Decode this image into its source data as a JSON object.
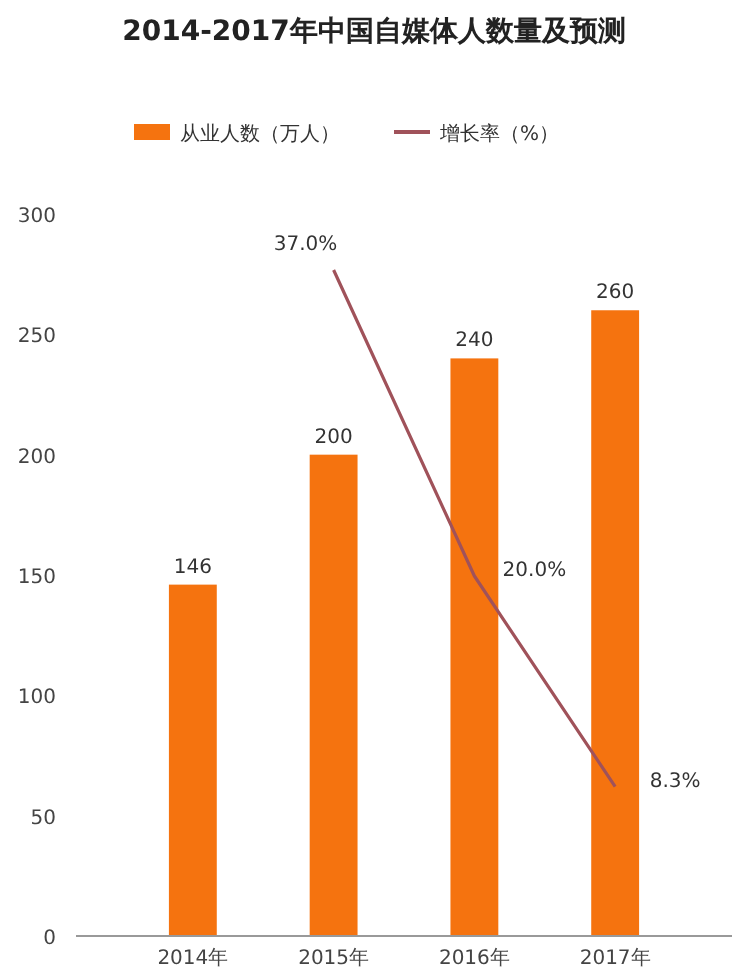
{
  "chart_data": {
    "type": "bar",
    "title": "2014-2017年中国自媒体人数量及预测",
    "categories": [
      "2014年",
      "2015年",
      "2016年",
      "2017年"
    ],
    "series": [
      {
        "name": "从业人数（万人）",
        "color": "#f5730f",
        "values": [
          146,
          200,
          240,
          260
        ],
        "value_labels": [
          "146",
          "200",
          "240",
          "260"
        ]
      },
      {
        "name": "增长率（%）",
        "type": "line",
        "axis": "y2",
        "color": "#a0525a",
        "values": [
          null,
          37.0,
          20.0,
          8.3
        ],
        "value_labels": [
          null,
          "37.0%",
          "20.0%",
          "8.3%"
        ]
      }
    ],
    "ylim": [
      0,
      300
    ],
    "yticks": [
      0,
      50,
      100,
      150,
      200,
      250,
      300
    ],
    "tick_labels": "xy",
    "legend": "top",
    "grid": false
  }
}
